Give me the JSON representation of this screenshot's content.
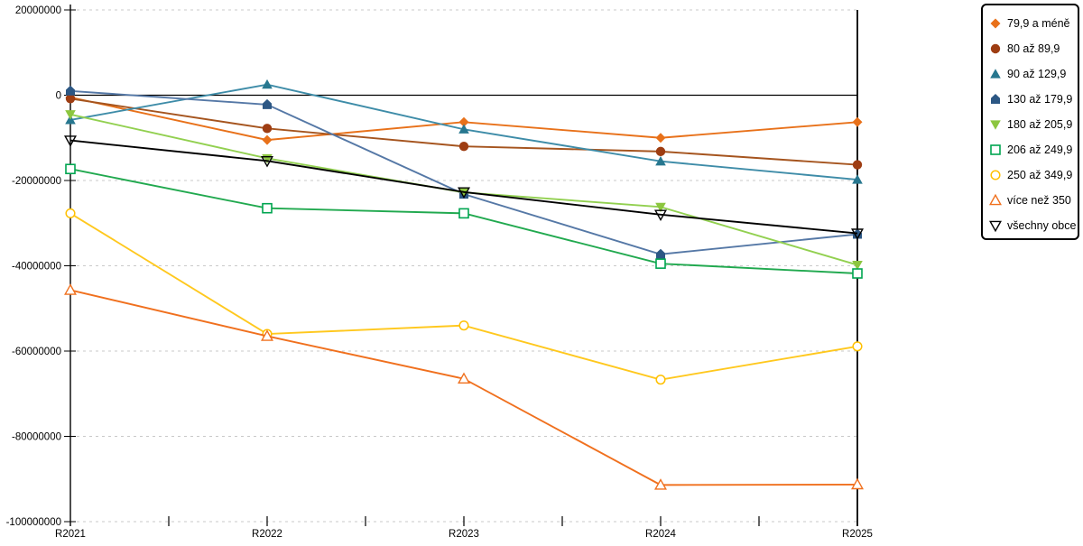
{
  "chart_data": {
    "type": "line",
    "title": "",
    "xlabel": "",
    "ylabel": "",
    "categories": [
      "R2021",
      "R2022",
      "R2023",
      "R2024",
      "R2025"
    ],
    "y_ticks": [
      20000000,
      0,
      -20000000,
      -40000000,
      -60000000,
      -80000000,
      -100000000
    ],
    "ylim": [
      -100000000,
      20000000
    ],
    "grid": true,
    "legend_position": "right",
    "series": [
      {
        "name": "79,9 a méně",
        "marker": "diamond",
        "color": "#E8711A",
        "line_color": "#E8711A",
        "values": [
          -500000,
          -10500000,
          -6300000,
          -10000000,
          -6300000
        ]
      },
      {
        "name": "80 až 89,9",
        "marker": "circle",
        "color": "#9E3D12",
        "line_color": "#A5541E",
        "values": [
          -800000,
          -7800000,
          -12000000,
          -13200000,
          -16300000
        ]
      },
      {
        "name": "90 až 129,9",
        "marker": "triangle-up",
        "color": "#27778F",
        "line_color": "#3E8CA8",
        "values": [
          -5800000,
          2500000,
          -8000000,
          -15500000,
          -19800000
        ]
      },
      {
        "name": "130 až 179,9",
        "marker": "pentagon",
        "color": "#2C5784",
        "line_color": "#5578A6",
        "values": [
          1000000,
          -2200000,
          -23200000,
          -37300000,
          -32600000
        ]
      },
      {
        "name": "180 až 205,9",
        "marker": "triangle-down",
        "color": "#8CC63F",
        "line_color": "#92D050",
        "values": [
          -4500000,
          -14800000,
          -22800000,
          -26200000,
          -39800000
        ]
      },
      {
        "name": "206 až 249,9",
        "marker": "square-open",
        "color": "#00A550",
        "line_color": "#21A94F",
        "values": [
          -17300000,
          -26500000,
          -27700000,
          -39500000,
          -41800000
        ]
      },
      {
        "name": "250 až 349,9",
        "marker": "circle-open",
        "color": "#FFC000",
        "line_color": "#FFC81E",
        "values": [
          -27700000,
          -56000000,
          -54000000,
          -66700000,
          -58900000
        ]
      },
      {
        "name": "více než 350",
        "marker": "triangle-up-open",
        "color": "#F0701E",
        "line_color": "#F0701E",
        "values": [
          -45700000,
          -56500000,
          -66500000,
          -91400000,
          -91300000
        ]
      },
      {
        "name": "všechny obce",
        "marker": "triangle-down-open",
        "color": "#000000",
        "line_color": "#000000",
        "values": [
          -10600000,
          -15400000,
          -22700000,
          -28000000,
          -32400000
        ]
      }
    ],
    "style": {
      "gridline_color": "#C9C9C9",
      "axis_color": "#000000",
      "zero_line_color": "#000000",
      "background": "#FFFFFF"
    }
  }
}
